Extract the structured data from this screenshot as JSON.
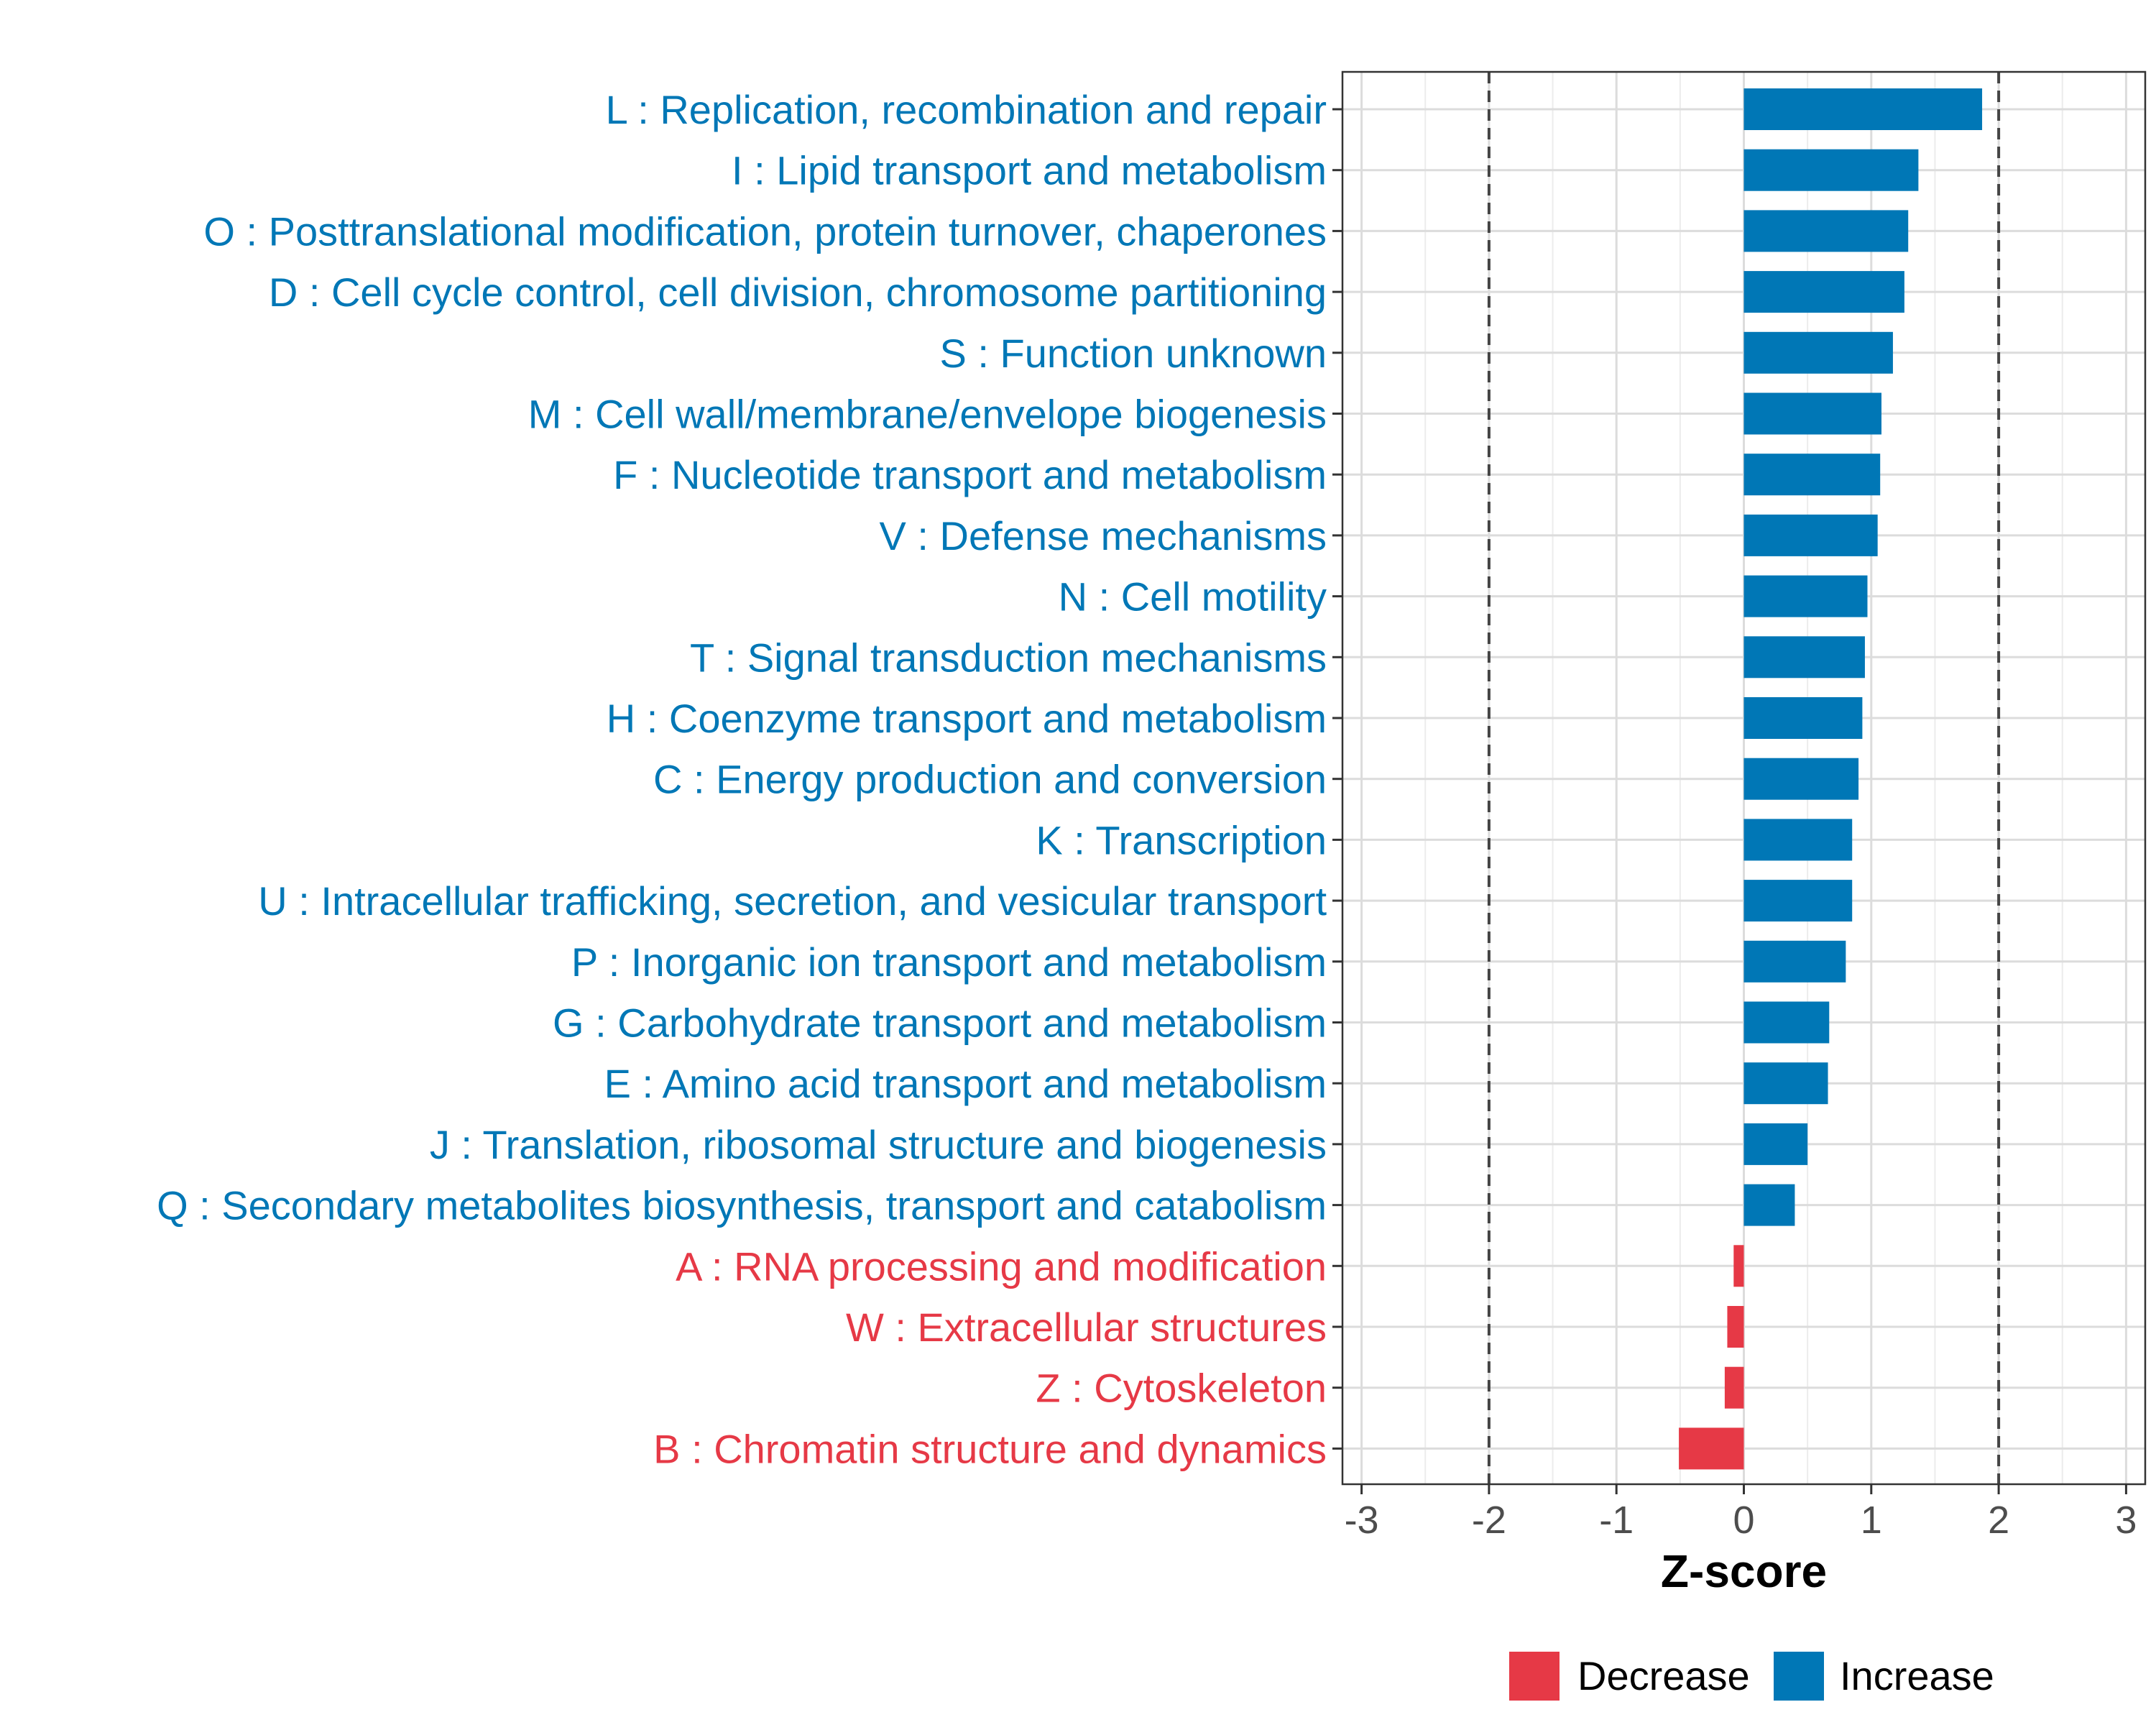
{
  "chart_data": {
    "type": "bar",
    "orientation": "horizontal",
    "title": "",
    "xlabel": "Z-score",
    "ylabel": "",
    "xlim": [
      -3.15,
      3.15
    ],
    "xticks": [
      -3,
      -2,
      -1,
      0,
      1,
      2,
      3
    ],
    "xtick_labels": [
      "-3",
      "-2",
      "-1",
      "0",
      "1",
      "2",
      "3"
    ],
    "threshold_lines": [
      -2,
      2
    ],
    "grid": true,
    "legend_position": "bottom",
    "colors": {
      "Increase": "#0077B6",
      "Decrease": "#E63946"
    },
    "categories": [
      "L : Replication, recombination and repair",
      "I : Lipid transport and metabolism",
      "O : Posttranslational modification, protein turnover, chaperones",
      "D : Cell cycle control, cell division, chromosome partitioning",
      "S : Function unknown",
      "M : Cell wall/membrane/envelope biogenesis",
      "F : Nucleotide transport and metabolism",
      "V : Defense mechanisms",
      "N : Cell motility",
      "T : Signal transduction mechanisms",
      "H : Coenzyme transport and metabolism",
      "C : Energy production and conversion",
      "K : Transcription",
      "U : Intracellular trafficking, secretion, and vesicular transport",
      "P : Inorganic ion transport and metabolism",
      "G : Carbohydrate transport and metabolism",
      "E : Amino acid transport and metabolism",
      "J : Translation, ribosomal structure and biogenesis",
      "Q : Secondary metabolites biosynthesis, transport and catabolism",
      "A : RNA processing and modification",
      "W : Extracellular structures",
      "Z : Cytoskeleton",
      "B : Chromatin structure and dynamics"
    ],
    "values": [
      1.87,
      1.37,
      1.29,
      1.26,
      1.17,
      1.08,
      1.07,
      1.05,
      0.97,
      0.95,
      0.93,
      0.9,
      0.85,
      0.85,
      0.8,
      0.67,
      0.66,
      0.5,
      0.4,
      -0.08,
      -0.13,
      -0.15,
      -0.51
    ],
    "groups": [
      "Increase",
      "Increase",
      "Increase",
      "Increase",
      "Increase",
      "Increase",
      "Increase",
      "Increase",
      "Increase",
      "Increase",
      "Increase",
      "Increase",
      "Increase",
      "Increase",
      "Increase",
      "Increase",
      "Increase",
      "Increase",
      "Increase",
      "Decrease",
      "Decrease",
      "Decrease",
      "Decrease"
    ],
    "legend": [
      {
        "label": "Decrease",
        "color": "#E63946"
      },
      {
        "label": "Increase",
        "color": "#0077B6"
      }
    ]
  }
}
